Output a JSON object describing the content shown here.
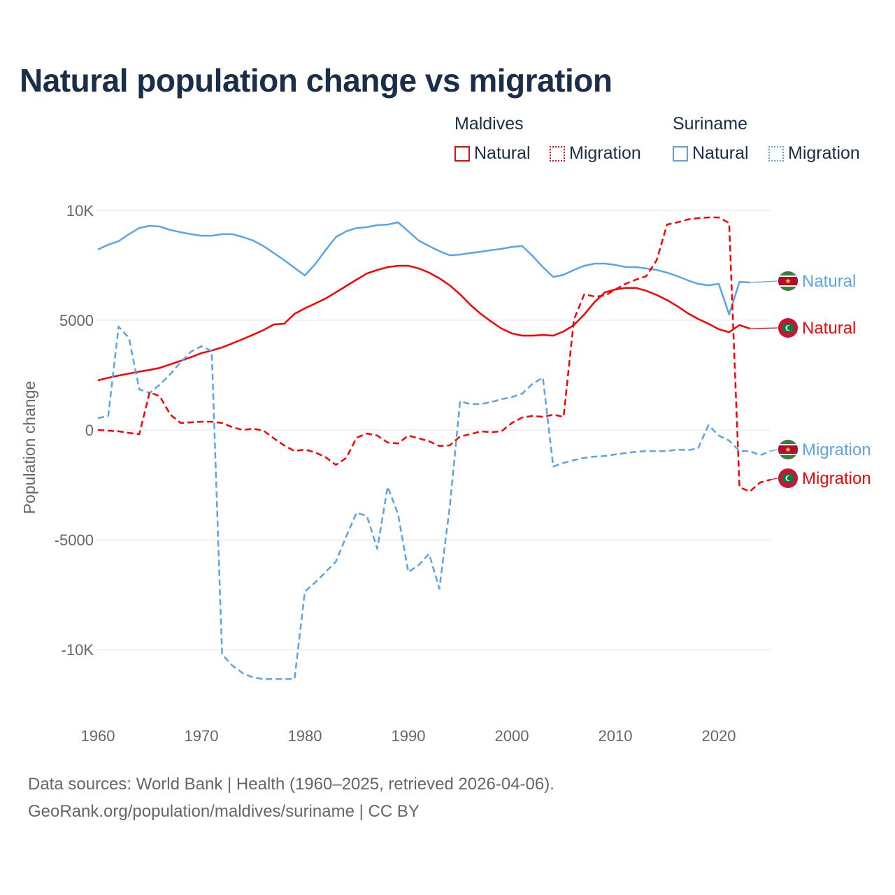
{
  "chart_data": {
    "type": "line",
    "title": "Natural population change vs migration",
    "ylabel": "Population change",
    "xlabel": "",
    "xlim": [
      1960,
      2025
    ],
    "ylim": [
      -13000,
      10700
    ],
    "x_ticks": [
      1960,
      1970,
      1980,
      1990,
      2000,
      2010,
      2020
    ],
    "x_tick_labels": [
      "1960",
      "1970",
      "1980",
      "1990",
      "2000",
      "2010",
      "2020"
    ],
    "y_ticks": [
      10000,
      5000,
      0,
      -5000,
      -10000
    ],
    "y_tick_labels": [
      "10K",
      "5000",
      "0",
      "-5000",
      "-10K"
    ],
    "grid": true,
    "legend": {
      "placement": "top-right",
      "groups": [
        {
          "name": "Maldives",
          "items": [
            "Natural",
            "Migration"
          ]
        },
        {
          "name": "Suriname",
          "items": [
            "Natural",
            "Migration"
          ]
        }
      ]
    },
    "series": [
      {
        "name": "Suriname Natural",
        "country": "Suriname",
        "kind": "Natural",
        "color": "#5aa5e8",
        "dash": "solid",
        "end_label": "Natural",
        "start_year": 1960,
        "values": [
          8220,
          8440,
          8600,
          8920,
          9200,
          9300,
          9270,
          9110,
          9010,
          8920,
          8850,
          8850,
          8920,
          8920,
          8790,
          8630,
          8380,
          8060,
          7740,
          7390,
          7040,
          7550,
          8190,
          8790,
          9050,
          9200,
          9240,
          9330,
          9360,
          9460,
          9050,
          8630,
          8380,
          8150,
          7960,
          7990,
          8060,
          8120,
          8190,
          8250,
          8340,
          8380,
          7930,
          7420,
          6970,
          7070,
          7290,
          7480,
          7580,
          7580,
          7520,
          7420,
          7420,
          7360,
          7290,
          7170,
          7010,
          6820,
          6660,
          6590,
          6660,
          5260,
          6750,
          6720
        ]
      },
      {
        "name": "Maldives Natural",
        "country": "Maldives",
        "kind": "Natural",
        "color": "#ff0000",
        "dash": "solid",
        "end_label": "Natural",
        "start_year": 1960,
        "values": [
          2260,
          2380,
          2480,
          2570,
          2660,
          2740,
          2830,
          2990,
          3150,
          3320,
          3500,
          3620,
          3760,
          3950,
          4140,
          4340,
          4550,
          4810,
          4840,
          5290,
          5540,
          5760,
          5990,
          6270,
          6560,
          6850,
          7130,
          7290,
          7420,
          7480,
          7480,
          7360,
          7170,
          6910,
          6590,
          6180,
          5700,
          5290,
          4940,
          4620,
          4400,
          4300,
          4300,
          4330,
          4300,
          4490,
          4780,
          5260,
          5830,
          6270,
          6400,
          6470,
          6470,
          6340,
          6150,
          5920,
          5640,
          5320,
          5060,
          4840,
          4590,
          4460,
          4780,
          4620
        ]
      },
      {
        "name": "Suriname Migration",
        "country": "Suriname",
        "kind": "Migration",
        "color": "#5aa5e8",
        "dash": "dashed",
        "end_label": "Migration",
        "start_year": 1960,
        "values": [
          540,
          640,
          4710,
          4200,
          1850,
          1690,
          2070,
          2550,
          3090,
          3570,
          3820,
          3600,
          -10220,
          -10730,
          -11080,
          -11270,
          -11340,
          -11340,
          -11340,
          -11340,
          -7360,
          -6940,
          -6470,
          -5990,
          -4840,
          -3760,
          -3920,
          -5410,
          -2580,
          -3820,
          -6470,
          -6150,
          -5640,
          -7230,
          -3500,
          1310,
          1180,
          1180,
          1270,
          1400,
          1500,
          1660,
          2100,
          2390,
          -1660,
          -1500,
          -1370,
          -1270,
          -1210,
          -1180,
          -1110,
          -1050,
          -990,
          -960,
          -960,
          -960,
          -890,
          -920,
          -830,
          220,
          -250,
          -480,
          -960,
          -960,
          -1150,
          -960
        ]
      },
      {
        "name": "Maldives Migration",
        "country": "Maldives",
        "kind": "Migration",
        "color": "#ff0000",
        "dash": "dashed",
        "end_label": "Migration",
        "start_year": 1960,
        "values": [
          0,
          -30,
          -60,
          -130,
          -190,
          1720,
          1530,
          700,
          320,
          350,
          380,
          380,
          320,
          130,
          0,
          60,
          -30,
          -380,
          -700,
          -960,
          -890,
          -1020,
          -1240,
          -1590,
          -1270,
          -350,
          -160,
          -250,
          -570,
          -610,
          -250,
          -380,
          -510,
          -730,
          -700,
          -290,
          -190,
          -60,
          -100,
          -60,
          320,
          570,
          640,
          600,
          700,
          600,
          5030,
          6180,
          6080,
          6120,
          6400,
          6660,
          6850,
          7010,
          7740,
          9360,
          9460,
          9590,
          9650,
          9680,
          9680,
          9430,
          -2610,
          -2800,
          -2390,
          -2260
        ]
      }
    ]
  },
  "legend_labels": {
    "maldives": "Maldives",
    "suriname": "Suriname",
    "natural": "Natural",
    "migration": "Migration"
  },
  "footer": {
    "line1": "Data sources: World Bank | Health (1960–2025, retrieved 2026-04-06).",
    "line2": "GeoRank.org/population/maldives/suriname | CC BY"
  }
}
